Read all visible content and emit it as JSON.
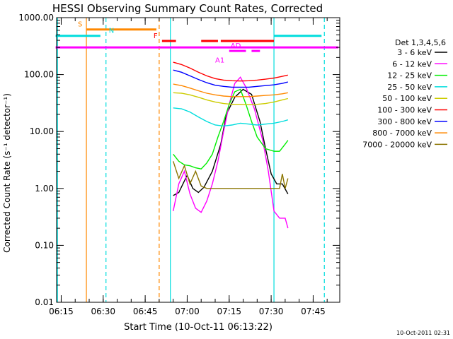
{
  "chart_data": {
    "type": "line",
    "title": "HESSI Observing Summary Count Rates, Corrected",
    "xlabel": "Start Time (10-Oct-11 06:13:22)",
    "ylabel": "Corrected Count Rate (s⁻¹ detector⁻¹)",
    "y_scale": "log",
    "ylim": [
      0.01,
      1000
    ],
    "xlim": [
      "06:13:22",
      "07:54:30"
    ],
    "x_ticks": [
      "06:15",
      "06:30",
      "06:45",
      "07:00",
      "07:15",
      "07:30",
      "07:45"
    ],
    "y_ticks": [
      "1000.00",
      "100.00",
      "10.00",
      "1.00",
      "0.10",
      "0.01"
    ],
    "legend_title": "Det 1,3,4,5,6",
    "legend_position": "right",
    "timestamp": "10-Oct-2011 02:31",
    "series": [
      {
        "name": "3 - 6 keV",
        "color": "#000000",
        "x": [
          "06:55",
          "06:57",
          "07:00",
          "07:02",
          "07:04",
          "07:06",
          "07:09",
          "07:12",
          "07:14",
          "07:17",
          "07:20",
          "07:23",
          "07:26",
          "07:28",
          "07:30",
          "07:32",
          "07:34",
          "07:36"
        ],
        "y": [
          0.75,
          0.85,
          1.7,
          1.0,
          0.85,
          1.05,
          2.0,
          6.0,
          20,
          40,
          55,
          45,
          15,
          5,
          1.8,
          1.2,
          1.2,
          0.8
        ]
      },
      {
        "name": "6 - 12 keV",
        "color": "#ff00ff",
        "x": [
          "06:55",
          "06:57",
          "06:59",
          "07:01",
          "07:03",
          "07:05",
          "07:07",
          "07:09",
          "07:11",
          "07:13",
          "07:15",
          "07:17",
          "07:19",
          "07:21",
          "07:24",
          "07:27",
          "07:29",
          "07:31",
          "07:33",
          "07:35",
          "07:36"
        ],
        "y": [
          0.4,
          1.2,
          2.0,
          0.8,
          0.45,
          0.38,
          0.6,
          1.2,
          3.0,
          10,
          30,
          70,
          90,
          60,
          25,
          7,
          2.0,
          0.4,
          0.3,
          0.3,
          0.2
        ]
      },
      {
        "name": "12 - 25 keV",
        "color": "#00ee00",
        "x": [
          "06:55",
          "06:57",
          "06:59",
          "07:01",
          "07:03",
          "07:05",
          "07:07",
          "07:09",
          "07:11",
          "07:13",
          "07:15",
          "07:17",
          "07:19",
          "07:21",
          "07:23",
          "07:25",
          "07:28",
          "07:31",
          "07:33",
          "07:35",
          "07:36"
        ],
        "y": [
          4.0,
          3.0,
          2.6,
          2.5,
          2.3,
          2.2,
          2.8,
          4.0,
          8.0,
          15,
          30,
          50,
          55,
          30,
          15,
          8.0,
          5.0,
          4.5,
          4.5,
          6.0,
          7.0
        ]
      },
      {
        "name": "25 - 50 keV",
        "color": "#00dddd",
        "x": [
          "06:55",
          "06:58",
          "07:01",
          "07:04",
          "07:07",
          "07:10",
          "07:13",
          "07:16",
          "07:19",
          "07:22",
          "07:25",
          "07:28",
          "07:31",
          "07:34",
          "07:36"
        ],
        "y": [
          26,
          25,
          22,
          18,
          15,
          13,
          12.5,
          13,
          14,
          13.5,
          13,
          13.5,
          14,
          15,
          16
        ]
      },
      {
        "name": "50 - 100 keV",
        "color": "#cccc00",
        "x": [
          "06:55",
          "06:58",
          "07:01",
          "07:04",
          "07:07",
          "07:10",
          "07:13",
          "07:16",
          "07:19",
          "07:22",
          "07:25",
          "07:28",
          "07:31",
          "07:34",
          "07:36"
        ],
        "y": [
          48,
          47,
          44,
          40,
          36,
          33,
          31,
          30,
          30,
          29.5,
          30,
          31,
          33,
          36,
          38
        ]
      },
      {
        "name": "100 - 300 keV",
        "color": "#ff0000",
        "x": [
          "06:55",
          "06:58",
          "07:01",
          "07:04",
          "07:07",
          "07:10",
          "07:13",
          "07:16",
          "07:19",
          "07:22",
          "07:25",
          "07:28",
          "07:31",
          "07:34",
          "07:36"
        ],
        "y": [
          165,
          150,
          130,
          110,
          95,
          85,
          80,
          78,
          77,
          78,
          80,
          83,
          87,
          93,
          98
        ]
      },
      {
        "name": "300 - 800 keV",
        "color": "#0000ff",
        "x": [
          "06:55",
          "06:58",
          "07:01",
          "07:04",
          "07:07",
          "07:10",
          "07:13",
          "07:16",
          "07:19",
          "07:22",
          "07:25",
          "07:28",
          "07:31",
          "07:34",
          "07:36"
        ],
        "y": [
          120,
          110,
          95,
          82,
          72,
          65,
          62,
          60,
          60,
          60,
          62,
          64,
          66,
          70,
          74
        ]
      },
      {
        "name": "800 - 7000 keV",
        "color": "#ff8800",
        "x": [
          "06:55",
          "06:58",
          "07:01",
          "07:04",
          "07:07",
          "07:10",
          "07:13",
          "07:16",
          "07:19",
          "07:22",
          "07:25",
          "07:28",
          "07:31",
          "07:34",
          "07:36"
        ],
        "y": [
          68,
          64,
          58,
          52,
          47,
          44,
          42,
          41,
          41,
          41,
          42,
          43,
          44,
          46,
          48
        ]
      },
      {
        "name": "7000 - 20000 keV",
        "color": "#8b7500",
        "x": [
          "06:55",
          "06:57",
          "06:59",
          "07:01",
          "07:03",
          "07:05",
          "07:07",
          "07:09",
          "07:12",
          "07:15",
          "07:18",
          "07:21",
          "07:24",
          "07:27",
          "07:30",
          "07:33",
          "07:34",
          "07:35",
          "07:36"
        ],
        "y": [
          3.0,
          1.5,
          2.5,
          1.2,
          2.0,
          1.1,
          1.0,
          1.0,
          1.0,
          1.0,
          1.0,
          1.0,
          1.0,
          1.0,
          1.0,
          1.0,
          1.8,
          1.0,
          1.5
        ]
      }
    ],
    "flag_bars": [
      {
        "label": "S",
        "color": "#ff8800",
        "segments": [
          [
            "06:24",
            "06:49"
          ]
        ],
        "level": 620
      },
      {
        "label": "N",
        "color": "#00dddd",
        "segments": [
          [
            "06:13",
            "06:29"
          ],
          [
            "07:31",
            "07:48"
          ]
        ],
        "level": 480
      },
      {
        "label": "F",
        "color": "#ff0000",
        "segments": [
          [
            "06:51",
            "06:56"
          ],
          [
            "07:05",
            "07:11"
          ],
          [
            "07:12",
            "07:31"
          ]
        ],
        "level": 390
      },
      {
        "label": "",
        "color": "#ff00ff",
        "segments": [
          [
            "06:13",
            "07:54"
          ]
        ],
        "level": 300
      },
      {
        "label": "AD",
        "color": "#ff00ff",
        "segments": [
          [
            "07:15",
            "07:21"
          ],
          [
            "07:23",
            "07:26"
          ]
        ],
        "level": 260
      },
      {
        "label": "A1",
        "color": "#ff00ff",
        "segments": [],
        "level": 200
      }
    ],
    "vertical_lines": [
      {
        "time": "06:13:40",
        "color": "#00dddd",
        "style": "solid"
      },
      {
        "time": "06:24",
        "color": "#ff8800",
        "style": "solid"
      },
      {
        "time": "06:31",
        "color": "#00dddd",
        "style": "dashed"
      },
      {
        "time": "06:50",
        "color": "#ff8800",
        "style": "dashed"
      },
      {
        "time": "06:54",
        "color": "#00dddd",
        "style": "solid"
      },
      {
        "time": "07:31",
        "color": "#00dddd",
        "style": "solid"
      },
      {
        "time": "07:49",
        "color": "#00dddd",
        "style": "dashed"
      }
    ]
  }
}
